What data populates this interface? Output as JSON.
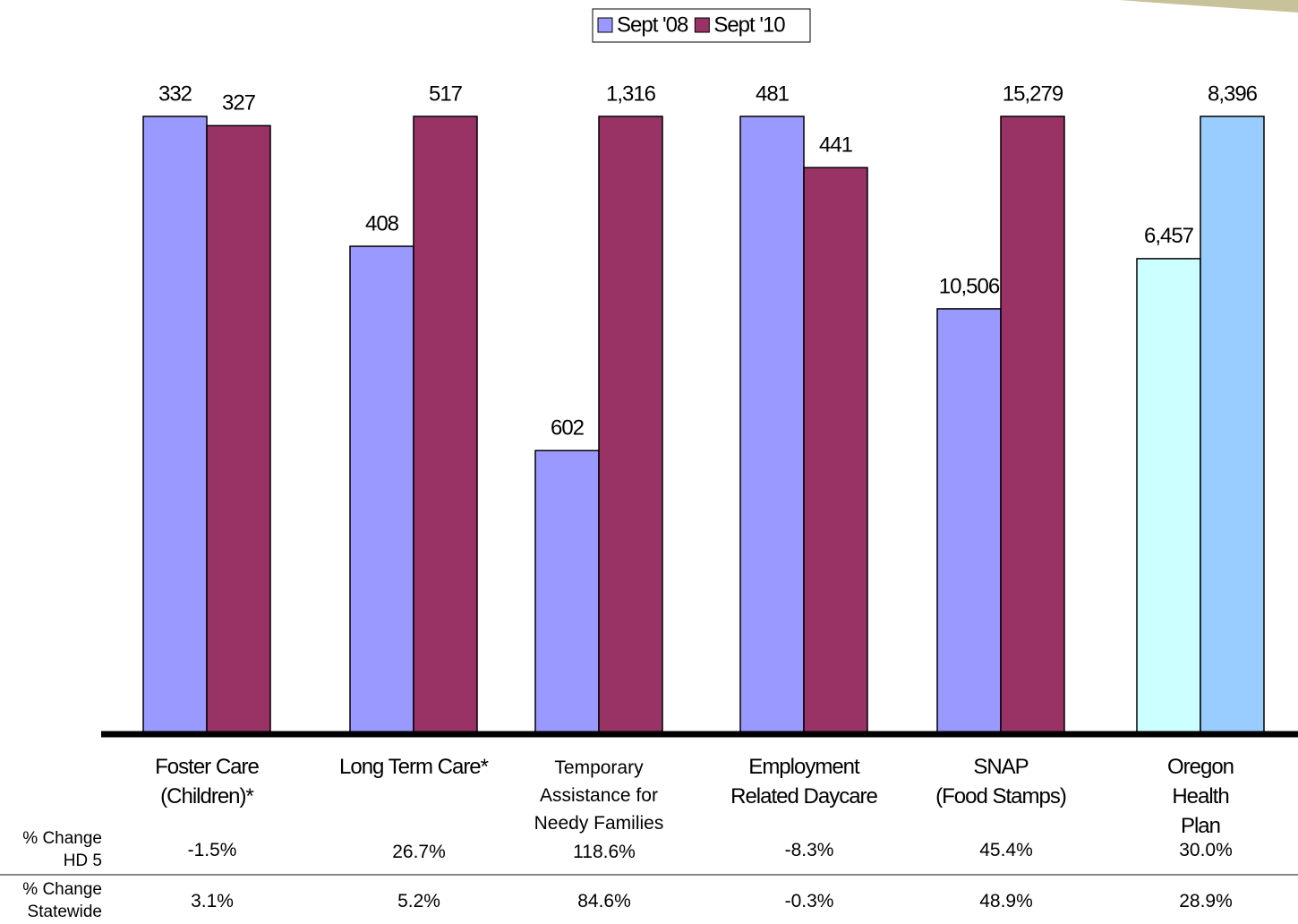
{
  "chart_data": {
    "type": "bar",
    "categories": [
      "Foster Care\n(Children)*",
      "Long Term Care*",
      "Temporary\nAssistance for\nNeedy Families",
      "Employment\nRelated Daycare",
      "SNAP\n(Food Stamps)",
      "Oregon Health\nPlan"
    ],
    "series": [
      {
        "name": "Sept '08",
        "color": "#9999ff",
        "colors": [
          "#9999ff",
          "#9999ff",
          "#9999ff",
          "#9999ff",
          "#9999ff",
          "#ccffff"
        ],
        "values": [
          332,
          408,
          602,
          481,
          10506,
          6457
        ],
        "value_labels": [
          "332",
          "408",
          "602",
          "481",
          "10,506",
          "6,457"
        ]
      },
      {
        "name": "Sept '10",
        "color": "#993366",
        "colors": [
          "#993366",
          "#993366",
          "#993366",
          "#993366",
          "#993366",
          "#99ccff"
        ],
        "values": [
          327,
          517,
          1316,
          441,
          15279,
          8396
        ],
        "value_labels": [
          "327",
          "517",
          "1,316",
          "441",
          "15,279",
          "8,396"
        ]
      }
    ],
    "legend": "top",
    "table": {
      "rows": [
        {
          "label": "% Change\nHD 5",
          "values": [
            "-1.5%",
            "26.7%",
            "118.6%",
            "-8.3%",
            "45.4%",
            "30.0%"
          ]
        },
        {
          "label": "% Change\nStatewide",
          "values": [
            "3.1%",
            "5.2%",
            "84.6%",
            "-0.3%",
            "48.9%",
            "28.9%"
          ]
        }
      ]
    }
  }
}
